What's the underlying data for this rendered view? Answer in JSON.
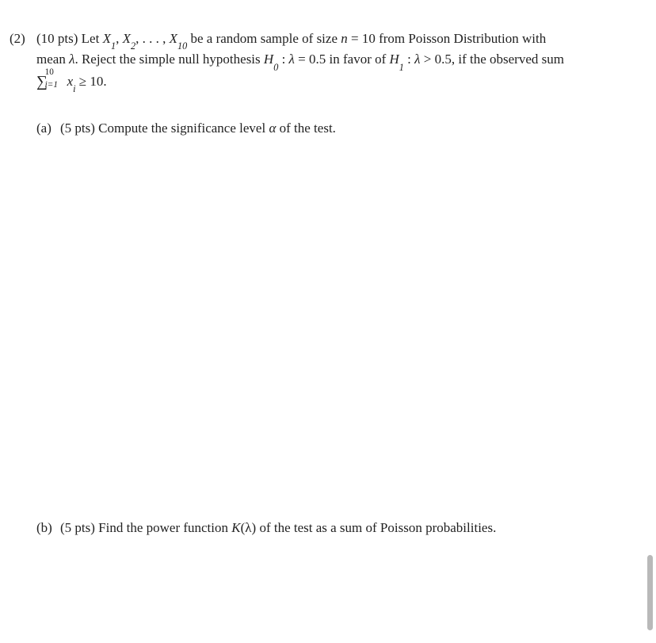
{
  "problem": {
    "number": "(2)",
    "points": "(10 pts)",
    "stem_1": "Let ",
    "sample": "X",
    "sample_sub1": "1",
    "sample_sub2": "2",
    "sample_sub10": "10",
    "stem_2": " be a random sample of size ",
    "n_var": "n",
    "eq": " = ",
    "n_val": "10 from Poisson Distribution with",
    "line2_a": "mean ",
    "lambda": "λ",
    "line2_b": ". Reject the simple null hypothesis ",
    "H0": "H",
    "H0sub": "0",
    "colon": " : ",
    "lam_eq": " = 0.5 in favor of ",
    "H1": "H",
    "H1sub": "1",
    "lam_gt": " > 0.5, if the observed sum",
    "sum_lo": "i=1",
    "sum_hi": "10",
    "xi": "x",
    "xi_sub": "i",
    "geq": " ≥ 10.",
    "comma": ", ",
    "dots": ", . . . , "
  },
  "part_a": {
    "label": "(a)",
    "points": "(5 pts)",
    "text": "Compute the significance level ",
    "alpha": "α",
    "text2": " of the test."
  },
  "part_b": {
    "label": "(b)",
    "points": "(5 pts)",
    "text": "Find the power function ",
    "K": "K",
    "arg": "(λ)",
    "text2": " of the test as a sum of Poisson probabilities."
  }
}
